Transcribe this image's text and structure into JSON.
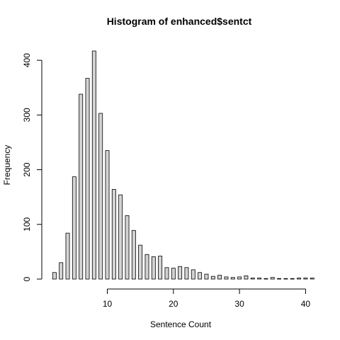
{
  "chart_data": {
    "type": "bar",
    "title": "Histogram of enhanced$sentct",
    "xlabel": "Sentence Count",
    "ylabel": "Frequency",
    "xlim": [
      1.5,
      41.5
    ],
    "ylim": [
      0,
      420
    ],
    "x_ticks": [
      10,
      20,
      30,
      40
    ],
    "y_ticks": [
      0,
      100,
      200,
      300,
      400
    ],
    "grid": false,
    "bar_fill": "#d3d3d3",
    "bar_stroke": "#000000",
    "bins": [
      {
        "x": 2,
        "count": 12
      },
      {
        "x": 3,
        "count": 30
      },
      {
        "x": 4,
        "count": 84
      },
      {
        "x": 5,
        "count": 187
      },
      {
        "x": 6,
        "count": 338
      },
      {
        "x": 7,
        "count": 367
      },
      {
        "x": 8,
        "count": 417
      },
      {
        "x": 9,
        "count": 303
      },
      {
        "x": 10,
        "count": 235
      },
      {
        "x": 11,
        "count": 164
      },
      {
        "x": 12,
        "count": 154
      },
      {
        "x": 13,
        "count": 116
      },
      {
        "x": 14,
        "count": 89
      },
      {
        "x": 15,
        "count": 62
      },
      {
        "x": 16,
        "count": 45
      },
      {
        "x": 17,
        "count": 41
      },
      {
        "x": 18,
        "count": 42
      },
      {
        "x": 19,
        "count": 21
      },
      {
        "x": 20,
        "count": 20
      },
      {
        "x": 21,
        "count": 23
      },
      {
        "x": 22,
        "count": 21
      },
      {
        "x": 23,
        "count": 17
      },
      {
        "x": 24,
        "count": 12
      },
      {
        "x": 25,
        "count": 9
      },
      {
        "x": 26,
        "count": 5
      },
      {
        "x": 27,
        "count": 7
      },
      {
        "x": 28,
        "count": 4
      },
      {
        "x": 29,
        "count": 3
      },
      {
        "x": 30,
        "count": 4
      },
      {
        "x": 31,
        "count": 6
      },
      {
        "x": 32,
        "count": 2
      },
      {
        "x": 33,
        "count": 2
      },
      {
        "x": 34,
        "count": 1
      },
      {
        "x": 35,
        "count": 3
      },
      {
        "x": 36,
        "count": 1
      },
      {
        "x": 37,
        "count": 1
      },
      {
        "x": 38,
        "count": 1
      },
      {
        "x": 39,
        "count": 2
      },
      {
        "x": 40,
        "count": 2
      },
      {
        "x": 41,
        "count": 2
      }
    ]
  }
}
